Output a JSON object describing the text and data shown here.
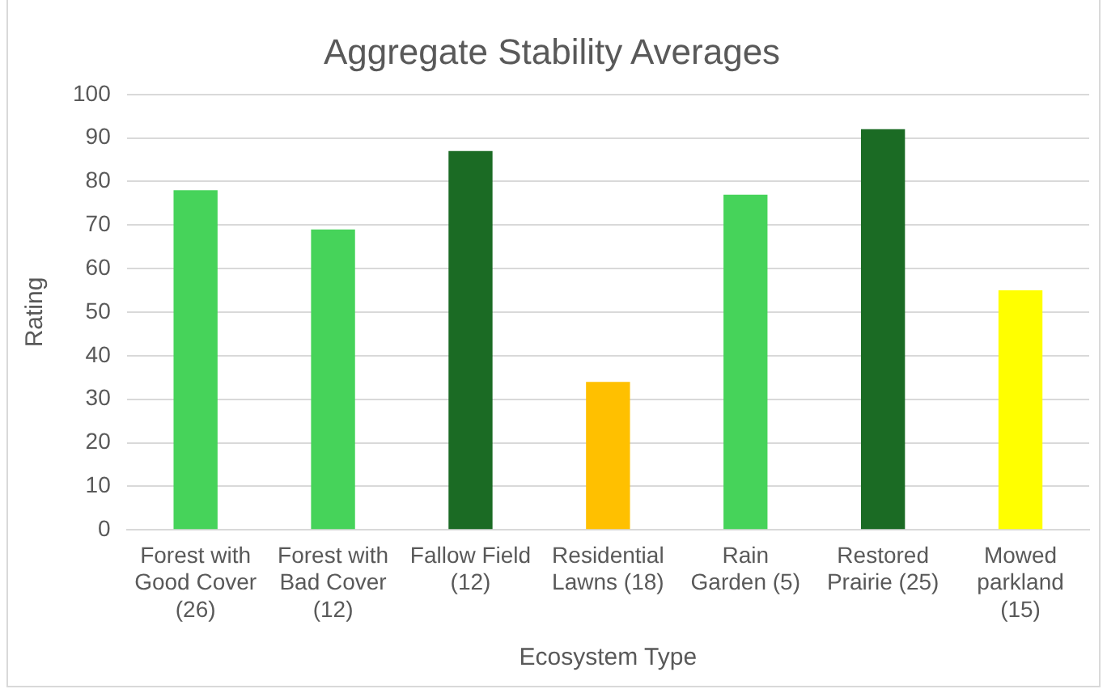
{
  "chart_data": {
    "type": "bar",
    "title": "Aggregate Stability Averages",
    "xlabel": "Ecosystem Type",
    "ylabel": "Rating",
    "categories": [
      "Forest with Good Cover (26)",
      "Forest with Bad Cover (12)",
      "Fallow Field (12)",
      "Residential Lawns (18)",
      "Rain Garden (5)",
      "Restored Prairie (25)",
      "Mowed parkland (15)"
    ],
    "values": [
      78,
      69,
      87,
      34,
      77,
      92,
      55
    ],
    "colors": [
      "#46d35a",
      "#46d35a",
      "#1b6b24",
      "#ffc000",
      "#46d35a",
      "#1b6b24",
      "#ffff00"
    ],
    "ylim": [
      0,
      100
    ],
    "yticks": [
      0,
      10,
      20,
      30,
      40,
      50,
      60,
      70,
      80,
      90,
      100
    ],
    "grid": "y",
    "legend": false
  }
}
